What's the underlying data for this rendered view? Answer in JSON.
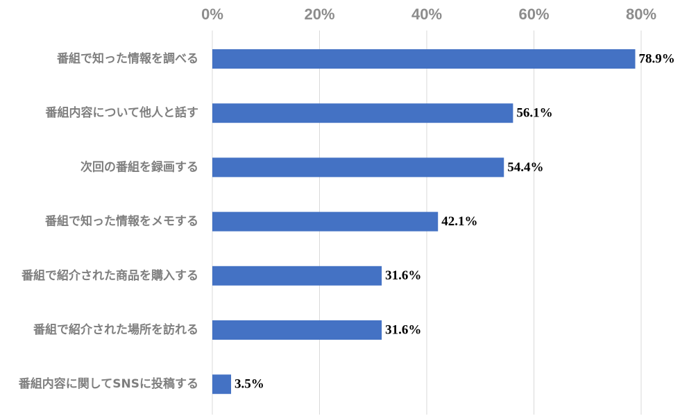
{
  "chart_data": {
    "type": "bar",
    "orientation": "horizontal",
    "categories": [
      "番組で知った情報を調べる",
      "番組内容について他人と話す",
      "次回の番組を録画する",
      "番組で知った情報をメモする",
      "番組で紹介された商品を購入する",
      "番組で紹介された場所を訪れる",
      "番組内容に関してSNSに投稿する"
    ],
    "values": [
      78.9,
      56.1,
      54.4,
      42.1,
      31.6,
      31.6,
      3.5
    ],
    "value_labels": [
      "78.9%",
      "56.1%",
      "54.4%",
      "42.1%",
      "31.6%",
      "31.6%",
      "3.5%"
    ],
    "xlim": [
      0,
      80
    ],
    "x_ticks": [
      0,
      20,
      40,
      60,
      80
    ],
    "x_tick_labels": [
      "0%",
      "20%",
      "40%",
      "60%",
      "80%"
    ],
    "axis_position": "top",
    "grid": true,
    "bar_color": "#4472c4"
  }
}
